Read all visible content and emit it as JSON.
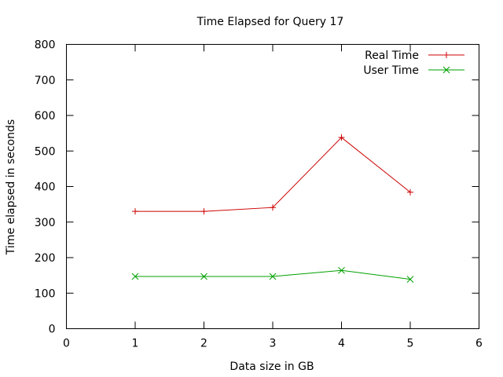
{
  "chart_data": {
    "type": "line",
    "title": "Time Elapsed for Query 17",
    "xlabel": "Data size in GB",
    "ylabel": "Time elapsed in seconds",
    "xlim": [
      0,
      6
    ],
    "ylim": [
      0,
      800
    ],
    "xticks": [
      0,
      1,
      2,
      3,
      4,
      5,
      6
    ],
    "yticks": [
      0,
      100,
      200,
      300,
      400,
      500,
      600,
      700,
      800
    ],
    "grid": false,
    "legend_position": "top-right",
    "x": [
      1,
      2,
      3,
      4,
      5
    ],
    "series": [
      {
        "name": "Real Time",
        "values": [
          330,
          330,
          341,
          538,
          384
        ],
        "color": "#cc0000",
        "marker": "plus"
      },
      {
        "name": "User Time",
        "values": [
          147,
          147,
          147,
          164,
          139
        ],
        "color": "#00a000",
        "marker": "cross"
      }
    ]
  }
}
